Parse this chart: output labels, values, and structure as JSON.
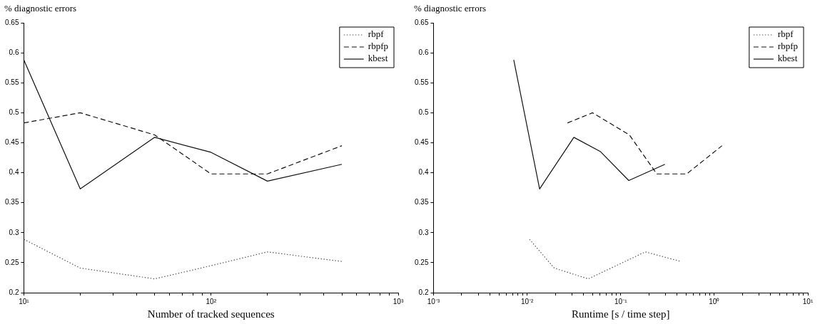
{
  "chart_data": [
    {
      "type": "line",
      "xlabel": "Number of tracked sequences",
      "ylabel": "% diagnostic errors",
      "log": "x",
      "grid": false,
      "legend": "top right",
      "marker": "none",
      "xlim": [
        10,
        1000
      ],
      "ylim": [
        0.2,
        0.65
      ],
      "xticks": [
        {
          "value": 10,
          "label": "10¹"
        },
        {
          "value": 20,
          "label": null
        },
        {
          "value": 30,
          "label": null
        },
        {
          "value": 40,
          "label": null
        },
        {
          "value": 50,
          "label": null
        },
        {
          "value": 60,
          "label": null
        },
        {
          "value": 70,
          "label": null
        },
        {
          "value": 80,
          "label": null
        },
        {
          "value": 90,
          "label": null
        },
        {
          "value": 100,
          "label": "10²"
        },
        {
          "value": 200,
          "label": null
        },
        {
          "value": 300,
          "label": null
        },
        {
          "value": 400,
          "label": null
        },
        {
          "value": 500,
          "label": null
        },
        {
          "value": 600,
          "label": null
        },
        {
          "value": 700,
          "label": null
        },
        {
          "value": 800,
          "label": null
        },
        {
          "value": 900,
          "label": null
        },
        {
          "value": 1000,
          "label": "10³"
        }
      ],
      "yticks": [
        0.2,
        0.25,
        0.3,
        0.35,
        0.4,
        0.45,
        0.5,
        0.55,
        0.6,
        0.65
      ],
      "series": [
        {
          "name": "rbpf",
          "color": "#555555",
          "line_style": "dotted",
          "x": [
            10,
            20,
            50,
            100,
            200,
            500
          ],
          "values": [
            0.289,
            0.241,
            0.223,
            0.245,
            0.268,
            0.252
          ]
        },
        {
          "name": "rbpfp",
          "color": "#111111",
          "line_style": "dashed",
          "x": [
            10,
            20,
            50,
            100,
            200,
            500
          ],
          "values": [
            0.483,
            0.5,
            0.463,
            0.398,
            0.398,
            0.445
          ]
        },
        {
          "name": "kbest",
          "color": "#111111",
          "line_style": "solid",
          "x": [
            10,
            20,
            50,
            100,
            200,
            500
          ],
          "values": [
            0.588,
            0.373,
            0.459,
            0.434,
            0.386,
            0.414
          ]
        }
      ]
    },
    {
      "type": "line",
      "xlabel": "Runtime [s / time step]",
      "ylabel": "% diagnostic errors",
      "log": "x",
      "grid": false,
      "legend": "top right",
      "marker": "none",
      "xlim": [
        0.001,
        10
      ],
      "ylim": [
        0.2,
        0.65
      ],
      "xticks": [
        {
          "value": 0.001,
          "label": "10⁻³"
        },
        {
          "value": 0.002,
          "label": null
        },
        {
          "value": 0.003,
          "label": null
        },
        {
          "value": 0.004,
          "label": null
        },
        {
          "value": 0.005,
          "label": null
        },
        {
          "value": 0.006,
          "label": null
        },
        {
          "value": 0.007,
          "label": null
        },
        {
          "value": 0.008,
          "label": null
        },
        {
          "value": 0.009,
          "label": null
        },
        {
          "value": 0.01,
          "label": "10⁻²"
        },
        {
          "value": 0.02,
          "label": null
        },
        {
          "value": 0.03,
          "label": null
        },
        {
          "value": 0.04,
          "label": null
        },
        {
          "value": 0.05,
          "label": null
        },
        {
          "value": 0.06,
          "label": null
        },
        {
          "value": 0.07,
          "label": null
        },
        {
          "value": 0.08,
          "label": null
        },
        {
          "value": 0.09,
          "label": null
        },
        {
          "value": 0.1,
          "label": "10⁻¹"
        },
        {
          "value": 0.2,
          "label": null
        },
        {
          "value": 0.3,
          "label": null
        },
        {
          "value": 0.4,
          "label": null
        },
        {
          "value": 0.5,
          "label": null
        },
        {
          "value": 0.6,
          "label": null
        },
        {
          "value": 0.7,
          "label": null
        },
        {
          "value": 0.8,
          "label": null
        },
        {
          "value": 0.9,
          "label": null
        },
        {
          "value": 1,
          "label": "10⁰"
        },
        {
          "value": 2,
          "label": null
        },
        {
          "value": 3,
          "label": null
        },
        {
          "value": 4,
          "label": null
        },
        {
          "value": 5,
          "label": null
        },
        {
          "value": 6,
          "label": null
        },
        {
          "value": 7,
          "label": null
        },
        {
          "value": 8,
          "label": null
        },
        {
          "value": 9,
          "label": null
        },
        {
          "value": 10,
          "label": "10¹"
        }
      ],
      "yticks": [
        0.2,
        0.25,
        0.3,
        0.35,
        0.4,
        0.45,
        0.5,
        0.55,
        0.6,
        0.65
      ],
      "series": [
        {
          "name": "rbpf",
          "color": "#555555",
          "line_style": "dotted",
          "x": [
            0.0106,
            0.0195,
            0.045,
            0.183,
            0.44
          ],
          "values": [
            0.289,
            0.241,
            0.223,
            0.268,
            0.252
          ]
        },
        {
          "name": "rbpfp",
          "color": "#111111",
          "line_style": "dashed",
          "x": [
            0.027,
            0.05,
            0.124,
            0.243,
            0.507,
            1.21
          ],
          "values": [
            0.483,
            0.5,
            0.463,
            0.398,
            0.398,
            0.445
          ]
        },
        {
          "name": "kbest",
          "color": "#111111",
          "line_style": "solid",
          "x": [
            0.0072,
            0.0136,
            0.0316,
            0.061,
            0.122,
            0.297
          ],
          "values": [
            0.588,
            0.373,
            0.459,
            0.435,
            0.387,
            0.414
          ]
        }
      ]
    }
  ]
}
